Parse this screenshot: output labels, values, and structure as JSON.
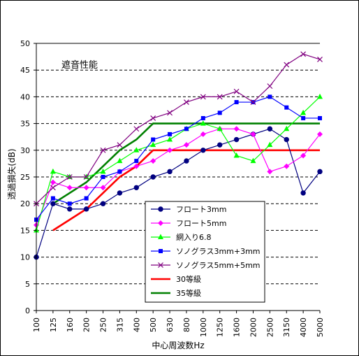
{
  "chart_data": {
    "type": "line",
    "title": "",
    "xlabel": "中心周波数Hz",
    "ylabel": "透過損失(dB)",
    "annotation": "遮音性能",
    "categories": [
      "100",
      "125",
      "160",
      "200",
      "250",
      "315",
      "400",
      "500",
      "630",
      "800",
      "1000",
      "1250",
      "1600",
      "2000",
      "2500",
      "3150",
      "4000",
      "5000"
    ],
    "ylim": [
      0,
      50
    ],
    "yticks": [
      0,
      5,
      10,
      15,
      20,
      25,
      30,
      35,
      40,
      45,
      50
    ],
    "grid": "horizontal-dashed",
    "legend_position": "lower-center",
    "series": [
      {
        "name": "フロート3mm",
        "color": "#000080",
        "marker": "circle",
        "values": [
          10,
          20,
          19,
          19,
          20,
          22,
          23,
          25,
          26,
          28,
          30,
          31,
          32,
          33,
          34,
          32,
          22,
          26
        ]
      },
      {
        "name": "フロート5mm",
        "color": "#ff00ff",
        "marker": "diamond",
        "values": [
          16,
          24,
          23,
          23,
          23,
          26,
          27,
          28,
          30,
          31,
          33,
          34,
          34,
          33,
          26,
          27,
          29,
          33
        ]
      },
      {
        "name": "網入り6.8",
        "color": "#00ff00",
        "marker": "triangle",
        "values": [
          15,
          26,
          25,
          25,
          26,
          28,
          30,
          31,
          32,
          34,
          35,
          34,
          29,
          28,
          31,
          34,
          37,
          40
        ]
      },
      {
        "name": "ソノグラス3mm+3mm",
        "color": "#0000ff",
        "marker": "square",
        "values": [
          17,
          21,
          20,
          21,
          25,
          26,
          28,
          32,
          33,
          34,
          36,
          37,
          39,
          39,
          40,
          38,
          36,
          36
        ]
      },
      {
        "name": "ソノグラス5mm+5mm",
        "color": "#800080",
        "marker": "cross",
        "values": [
          20,
          23,
          25,
          25,
          30,
          31,
          34,
          36,
          37,
          39,
          40,
          40,
          41,
          39,
          42,
          46,
          48,
          47
        ]
      },
      {
        "name": "30等級",
        "color": "#ff0000",
        "marker": "none",
        "values": [
          null,
          15,
          17,
          19,
          22,
          25,
          27,
          30,
          30,
          30,
          30,
          30,
          30,
          30,
          30,
          30,
          30,
          30
        ]
      },
      {
        "name": "35等級",
        "color": "#008000",
        "marker": "none",
        "values": [
          null,
          20,
          22,
          24,
          27,
          30,
          32,
          35,
          35,
          35,
          35,
          35,
          35,
          35,
          35,
          35,
          35,
          35
        ]
      }
    ]
  }
}
